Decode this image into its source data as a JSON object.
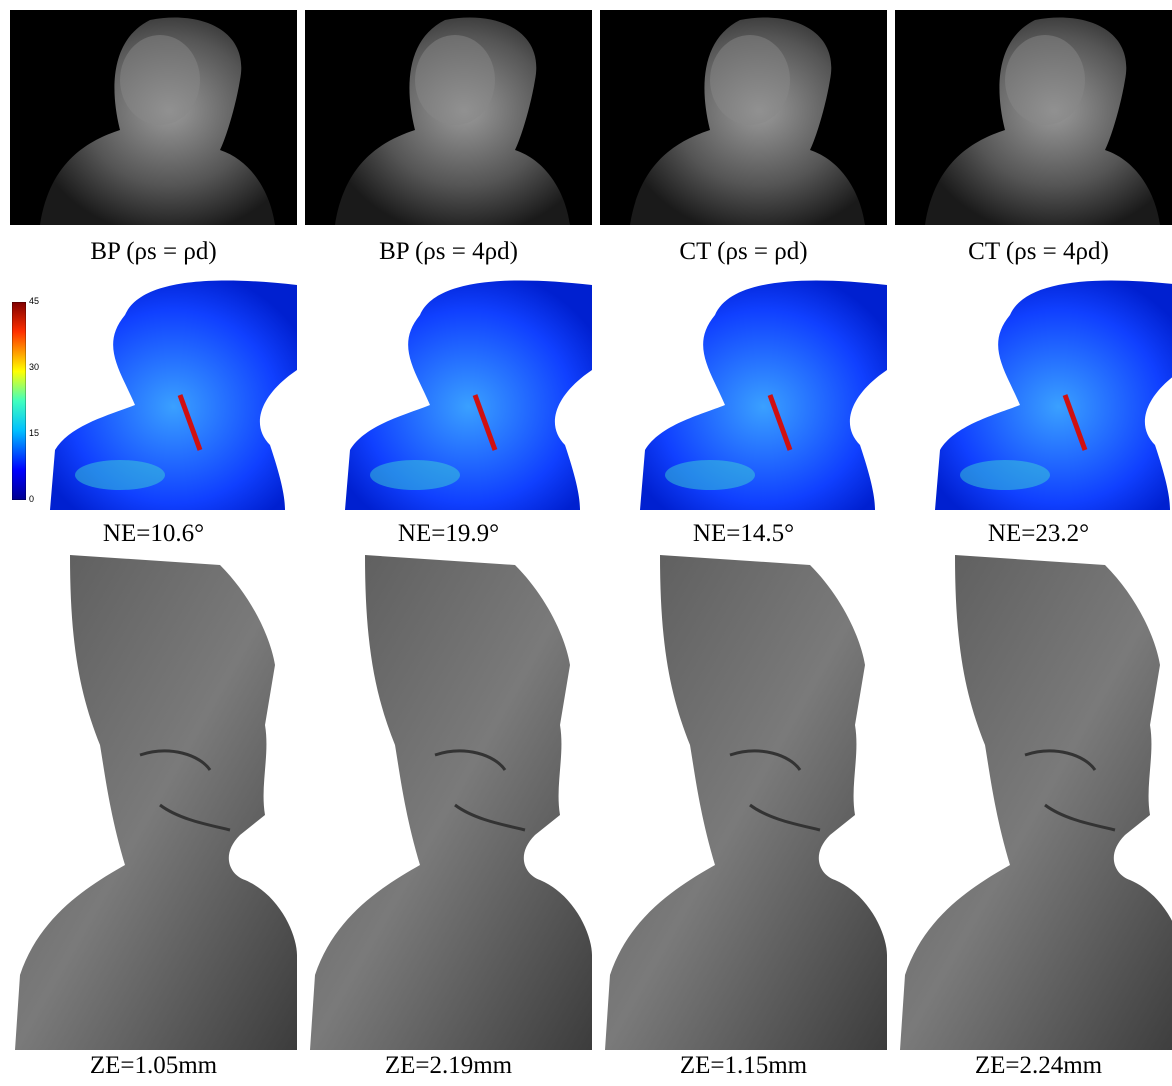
{
  "columns": [
    {
      "render_caption": "BP (ρs = ρd)",
      "normal_error": "NE=10.6°",
      "depth_error": "ZE=1.05mm"
    },
    {
      "render_caption": "BP (ρs = 4ρd)",
      "normal_error": "NE=19.9°",
      "depth_error": "ZE=2.19mm"
    },
    {
      "render_caption": "CT (ρs = ρd)",
      "normal_error": "NE=14.5°",
      "depth_error": "ZE=1.15mm"
    },
    {
      "render_caption": "CT (ρs = 4ρd)",
      "normal_error": "NE=23.2°",
      "depth_error": "ZE=2.24mm"
    }
  ],
  "colorbar": {
    "ticks": [
      "45",
      "30",
      "15",
      "0"
    ]
  }
}
